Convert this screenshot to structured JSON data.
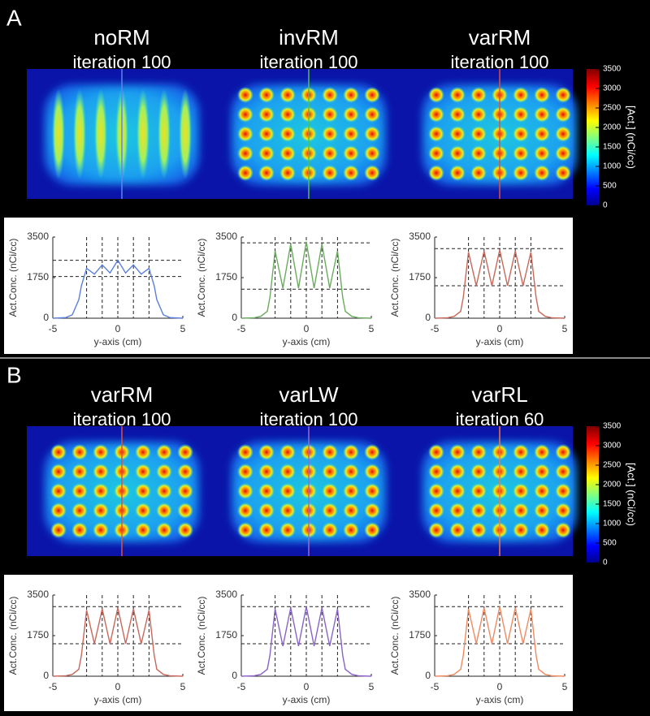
{
  "panels": [
    {
      "label": "A",
      "maps": [
        {
          "title": "noRM",
          "subtitle": "iteration 100",
          "line_color": "#5b86f0"
        },
        {
          "title": "invRM",
          "subtitle": "iteration 100",
          "line_color": "#55c040"
        },
        {
          "title": "varRM",
          "subtitle": "iteration 100",
          "line_color": "#e0503a"
        }
      ],
      "colorbar": {
        "label": "[Act.] (nCi/cc)",
        "lim": [
          0,
          3500
        ],
        "ticks": [
          0,
          500,
          1000,
          1500,
          2000,
          2500,
          3000,
          3500
        ]
      }
    },
    {
      "label": "B",
      "maps": [
        {
          "title": "varRM",
          "subtitle": "iteration 100",
          "line_color": "#e0503a"
        },
        {
          "title": "varLW",
          "subtitle": "iteration 100",
          "line_color": "#9a6ad0"
        },
        {
          "title": "varRL",
          "subtitle": "iteration 60",
          "line_color": "#f07a48"
        }
      ],
      "colorbar": {
        "label": "[Act.] (nCi/cc)",
        "lim": [
          0,
          3500
        ],
        "ticks": [
          0,
          500,
          1000,
          1500,
          2000,
          2500,
          3000,
          3500
        ]
      }
    }
  ],
  "chart_data": [
    {
      "type": "line",
      "ylabel": "Act.Conc. (nCi/cc)",
      "xlabel": "y-axis (cm)",
      "xlim": [
        -5,
        5
      ],
      "ylim": [
        0,
        3500
      ],
      "xticks": [
        -5,
        0,
        5
      ],
      "yticks": [
        0,
        1750,
        3500
      ],
      "x": [
        -5,
        -4,
        -3.5,
        -3,
        -2.8,
        -2.4,
        -1.8,
        -1.2,
        -0.6,
        0,
        0.6,
        1.2,
        1.8,
        2.4,
        2.8,
        3,
        3.5,
        4,
        5
      ],
      "series": [
        {
          "color": "#5b7fe0",
          "values": [
            0,
            30,
            150,
            800,
            1400,
            2150,
            1900,
            2300,
            1950,
            2500,
            1950,
            2300,
            1900,
            2150,
            1400,
            800,
            150,
            30,
            0
          ]
        }
      ],
      "vlines": [
        -2.4,
        -1.2,
        0,
        1.2,
        2.4
      ],
      "hlines": [
        2500,
        1800
      ]
    },
    {
      "type": "line",
      "ylabel": "Act.Conc. (nCi/cc)",
      "xlabel": "y-axis (cm)",
      "xlim": [
        -5,
        5
      ],
      "ylim": [
        0,
        3500
      ],
      "xticks": [
        -5,
        0,
        5
      ],
      "yticks": [
        0,
        1750,
        3500
      ],
      "x": [
        -5,
        -4,
        -3.5,
        -3,
        -2.8,
        -2.4,
        -1.8,
        -1.2,
        -0.6,
        0,
        0.6,
        1.2,
        1.8,
        2.4,
        2.8,
        3,
        3.5,
        4,
        5
      ],
      "series": [
        {
          "color": "#6aab5e",
          "values": [
            0,
            20,
            80,
            300,
            900,
            2900,
            1300,
            3200,
            1300,
            3300,
            1300,
            3200,
            1300,
            2900,
            900,
            300,
            80,
            20,
            0
          ]
        }
      ],
      "vlines": [
        -2.4,
        -1.2,
        0,
        1.2,
        2.4
      ],
      "hlines": [
        3250,
        1250
      ]
    },
    {
      "type": "line",
      "ylabel": "Act.Conc. (nCi/cc)",
      "xlabel": "y-axis (cm)",
      "xlim": [
        -5,
        5
      ],
      "ylim": [
        0,
        3500
      ],
      "xticks": [
        -5,
        0,
        5
      ],
      "yticks": [
        0,
        1750,
        3500
      ],
      "x": [
        -5,
        -4,
        -3.5,
        -3,
        -2.8,
        -2.4,
        -1.8,
        -1.2,
        -0.6,
        0,
        0.6,
        1.2,
        1.8,
        2.4,
        2.8,
        3,
        3.5,
        4,
        5
      ],
      "series": [
        {
          "color": "#c8675a",
          "values": [
            0,
            20,
            80,
            300,
            900,
            2850,
            1400,
            2900,
            1400,
            2950,
            1400,
            2900,
            1400,
            2850,
            900,
            300,
            80,
            20,
            0
          ]
        }
      ],
      "vlines": [
        -2.4,
        -1.2,
        0,
        1.2,
        2.4
      ],
      "hlines": [
        3000,
        1400
      ]
    },
    {
      "type": "line",
      "ylabel": "Act.Conc. (nCi/cc)",
      "xlabel": "y-axis (cm)",
      "xlim": [
        -5,
        5
      ],
      "ylim": [
        0,
        3500
      ],
      "xticks": [
        -5,
        0,
        5
      ],
      "yticks": [
        0,
        1750,
        3500
      ],
      "x": [
        -5,
        -4,
        -3.5,
        -3,
        -2.8,
        -2.4,
        -1.8,
        -1.2,
        -0.6,
        0,
        0.6,
        1.2,
        1.8,
        2.4,
        2.8,
        3,
        3.5,
        4,
        5
      ],
      "series": [
        {
          "color": "#c8675a",
          "values": [
            0,
            20,
            80,
            300,
            900,
            2850,
            1400,
            2900,
            1400,
            2950,
            1400,
            2900,
            1400,
            2850,
            900,
            300,
            80,
            20,
            0
          ]
        }
      ],
      "vlines": [
        -2.4,
        -1.2,
        0,
        1.2,
        2.4
      ],
      "hlines": [
        3000,
        1400
      ]
    },
    {
      "type": "line",
      "ylabel": "Act.Conc. (nCi/cc)",
      "xlabel": "y-axis (cm)",
      "xlim": [
        -5,
        5
      ],
      "ylim": [
        0,
        3500
      ],
      "xticks": [
        -5,
        0,
        5
      ],
      "yticks": [
        0,
        1750,
        3500
      ],
      "x": [
        -5,
        -4,
        -3.5,
        -3,
        -2.8,
        -2.4,
        -1.8,
        -1.2,
        -0.6,
        0,
        0.6,
        1.2,
        1.8,
        2.4,
        2.8,
        3,
        3.5,
        4,
        5
      ],
      "series": [
        {
          "color": "#8a63c8",
          "values": [
            0,
            20,
            80,
            300,
            900,
            2900,
            1300,
            2950,
            1300,
            3000,
            1300,
            2950,
            1300,
            2900,
            900,
            300,
            80,
            20,
            0
          ]
        }
      ],
      "vlines": [
        -2.4,
        -1.2,
        0,
        1.2,
        2.4
      ],
      "hlines": [
        3000,
        1400
      ]
    },
    {
      "type": "line",
      "ylabel": "Act.Conc. (nCi/cc)",
      "xlabel": "y-axis (cm)",
      "xlim": [
        -5,
        5
      ],
      "ylim": [
        0,
        3500
      ],
      "xticks": [
        -5,
        0,
        5
      ],
      "yticks": [
        0,
        1750,
        3500
      ],
      "x": [
        -5,
        -4,
        -3.5,
        -3,
        -2.8,
        -2.4,
        -1.8,
        -1.2,
        -0.6,
        0,
        0.6,
        1.2,
        1.8,
        2.4,
        2.8,
        3,
        3.5,
        4,
        5
      ],
      "series": [
        {
          "color": "#f08a60",
          "values": [
            0,
            20,
            80,
            300,
            900,
            2900,
            1400,
            2950,
            1400,
            3000,
            1400,
            2950,
            1400,
            2900,
            900,
            300,
            80,
            20,
            0
          ]
        }
      ],
      "vlines": [
        -2.4,
        -1.2,
        0,
        1.2,
        2.4
      ],
      "hlines": [
        3000,
        1400
      ]
    }
  ]
}
